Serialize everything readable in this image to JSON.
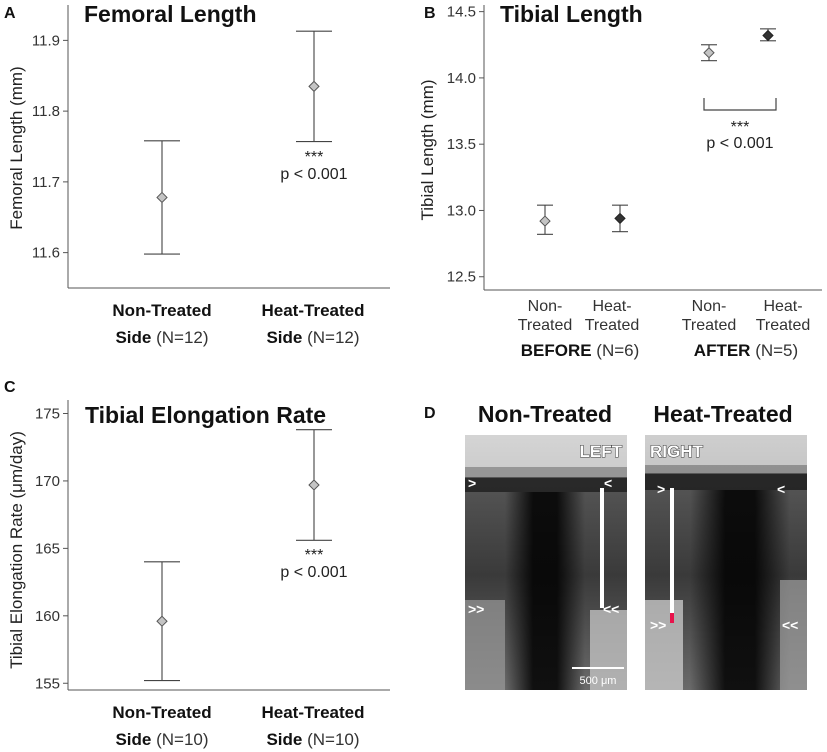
{
  "chart_data": [
    {
      "panel": "A",
      "type": "scatter",
      "title": "Femoral Length",
      "ylabel": "Femoral Length (mm)",
      "ylim": [
        11.55,
        11.95
      ],
      "yticks": [
        11.6,
        11.7,
        11.8,
        11.9
      ],
      "categories": [
        {
          "bold": "Non-Treated",
          "line2_bold": "Side",
          "line2_rest": " (N=12)"
        },
        {
          "bold": "Heat-Treated",
          "line2_bold": "Side",
          "line2_rest": " (N=12)"
        }
      ],
      "points": [
        {
          "y": 11.678,
          "low": 11.598,
          "high": 11.758
        },
        {
          "y": 11.835,
          "low": 11.757,
          "high": 11.913
        }
      ],
      "annotation": {
        "stars": "***",
        "p": "p < 0.001"
      }
    },
    {
      "panel": "B",
      "type": "scatter",
      "title": "Tibial Length",
      "ylabel": "Tibial Length (mm)",
      "ylim": [
        12.4,
        14.55
      ],
      "yticks": [
        "12.5",
        "13.0",
        "13.5",
        "14.0",
        "14.5"
      ],
      "categories": [
        {
          "line1": "Non-",
          "line2": "Treated"
        },
        {
          "line1": "Heat-",
          "line2": "Treated"
        },
        {
          "line1": "Non-",
          "line2": "Treated"
        },
        {
          "line1": "Heat-",
          "line2": "Treated"
        }
      ],
      "groups": [
        {
          "bold": "BEFORE",
          "rest": " (N=6)"
        },
        {
          "bold": "AFTER",
          "rest": " (N=5)"
        }
      ],
      "points": [
        {
          "y": 12.92,
          "low": 12.82,
          "high": 13.04,
          "marker": "light"
        },
        {
          "y": 12.94,
          "low": 12.84,
          "high": 13.04,
          "marker": "dark"
        },
        {
          "y": 14.19,
          "low": 14.13,
          "high": 14.25,
          "marker": "light"
        },
        {
          "y": 14.32,
          "low": 14.28,
          "high": 14.37,
          "marker": "dark"
        }
      ],
      "annotation": {
        "stars": "***",
        "p": "p < 0.001"
      }
    },
    {
      "panel": "C",
      "type": "scatter",
      "title": "Tibial Elongation Rate",
      "ylabel": "Tibial Elongation Rate (μm/day)",
      "ylim": [
        154.5,
        176
      ],
      "yticks": [
        155,
        160,
        165,
        170,
        175
      ],
      "categories": [
        {
          "bold": "Non-Treated",
          "line2_bold": "Side",
          "line2_rest": " (N=10)"
        },
        {
          "bold": "Heat-Treated",
          "line2_bold": "Side",
          "line2_rest": " (N=10)"
        }
      ],
      "points": [
        {
          "y": 159.6,
          "low": 155.2,
          "high": 164.0
        },
        {
          "y": 169.7,
          "low": 165.6,
          "high": 173.8
        }
      ],
      "annotation": {
        "stars": "***",
        "p": "p < 0.001"
      }
    }
  ],
  "panel_d": {
    "letter": "D",
    "heading_left": "Non-Treated",
    "heading_right": "Heat-Treated",
    "label_left": "LEFT",
    "label_right": "RIGHT",
    "chevron_single_right": ">",
    "chevron_single_left": "<",
    "chevron_double_right": ">>",
    "chevron_double_left": "<<",
    "scale_bar": "500 μm",
    "highlight_color": "#e8144c"
  },
  "colors": {
    "marker_light": "#c4c4c4",
    "marker_dark": "#333333"
  }
}
